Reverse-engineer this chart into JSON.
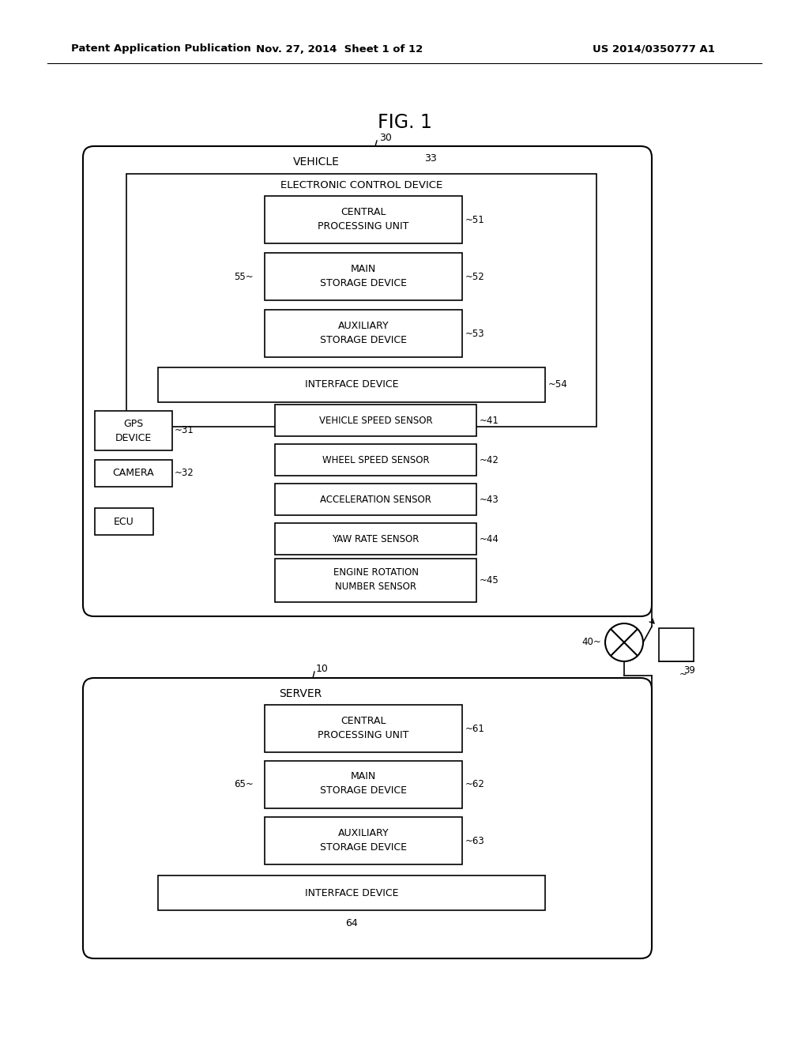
{
  "title": "FIG. 1",
  "header_left": "Patent Application Publication",
  "header_center": "Nov. 27, 2014  Sheet 1 of 12",
  "header_right": "US 2014/0350777 A1",
  "bg_color": "#ffffff"
}
